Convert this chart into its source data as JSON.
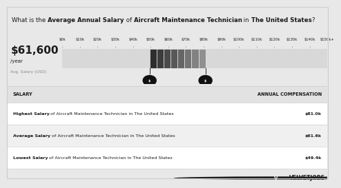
{
  "title_parts": [
    [
      "What is the ",
      false
    ],
    [
      "Average Annual Salary",
      true
    ],
    [
      " of ",
      false
    ],
    [
      "Aircraft Maintenance Technician",
      true
    ],
    [
      " in ",
      false
    ],
    [
      "The United States",
      true
    ],
    [
      "?",
      false
    ]
  ],
  "main_salary": "$61,600",
  "per_year": " /year",
  "avg_label": "Avg. Salary (USD)",
  "tick_labels": [
    "$0k",
    "$10k",
    "$20k",
    "$30k",
    "$40k",
    "$50k",
    "$60k",
    "$70k",
    "$80k",
    "$90k",
    "$100k",
    "$110k",
    "$120k",
    "$130k",
    "$140k",
    "$150k+"
  ],
  "tick_values": [
    0,
    10,
    20,
    30,
    40,
    50,
    60,
    70,
    80,
    90,
    100,
    110,
    120,
    130,
    140,
    150
  ],
  "bar_low": 49.4,
  "bar_high": 81.0,
  "avg_val": 61.6,
  "n_segments": 8,
  "seg_colors": [
    "#2e2e2e",
    "#3c3c3c",
    "#4a4a4a",
    "#585858",
    "#666666",
    "#747474",
    "#828282",
    "#909090"
  ],
  "bg_color": "#f0f0f0",
  "title_bg": "#ffffff",
  "bar_bg_color": "#d8d8d8",
  "table_header_bg": "#e2e2e2",
  "table_row_bgs": [
    "#ffffff",
    "#f0f0f0",
    "#ffffff"
  ],
  "salary_col": "SALARY",
  "compensation_col": "ANNUAL COMPENSATION",
  "rows": [
    {
      "label_bold": "Highest Salary",
      "label_rest": " of Aircraft Maintenance Technician in The United States",
      "value": "$81.0k"
    },
    {
      "label_bold": "Average Salary",
      "label_rest": " of Aircraft Maintenance Technician in The United States",
      "value": "$61.6k"
    },
    {
      "label_bold": "Lowest Salary",
      "label_rest": " of Aircraft Maintenance Technician in The United States",
      "value": "$49.4k"
    }
  ],
  "velvetjobs_text": "VELVETJOBS",
  "border_color": "#cccccc",
  "text_dark": "#1a1a1a",
  "text_gray": "#888888",
  "outer_bg": "#e8e8e8"
}
